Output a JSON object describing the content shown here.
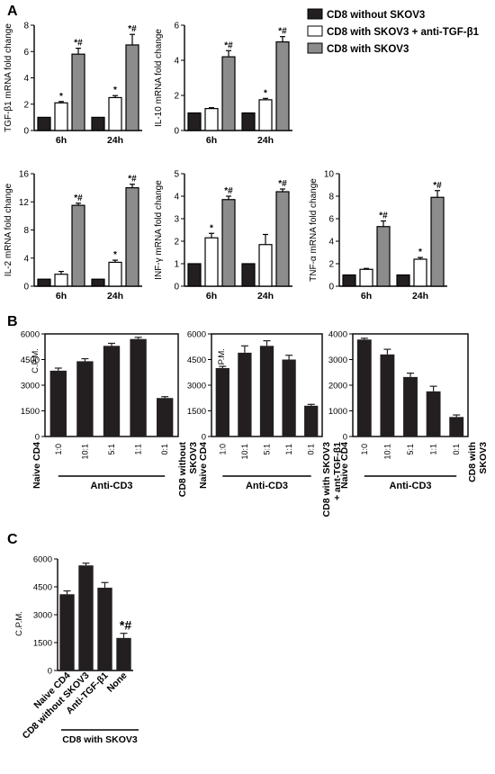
{
  "panels": {
    "A": "A",
    "B": "B",
    "C": "C"
  },
  "legend": {
    "items": [
      {
        "label": "CD8 without SKOV3",
        "color": "#231f20"
      },
      {
        "label": "CD8 with SKOV3 + anti-TGF-β1",
        "color": "#ffffff"
      },
      {
        "label": "CD8 with SKOV3",
        "color": "#8c8c8c"
      }
    ]
  },
  "chart_data": [
    {
      "id": "tgf",
      "panel": "A",
      "type": "bar",
      "ylabel": "TGF-β1 mRNA fold change",
      "categories": [
        "6h",
        "24h"
      ],
      "ylim": [
        0,
        8
      ],
      "yticks": [
        0,
        2,
        4,
        6,
        8
      ],
      "series": [
        {
          "name": "CD8 without SKOV3",
          "values": [
            1.0,
            1.0
          ],
          "errors": [
            0,
            0
          ],
          "annot": [
            "",
            ""
          ]
        },
        {
          "name": "CD8 with SKOV3 + anti-TGF-β1",
          "values": [
            2.1,
            2.5
          ],
          "errors": [
            0.1,
            0.15
          ],
          "annot": [
            "*",
            "*"
          ]
        },
        {
          "name": "CD8 with SKOV3",
          "values": [
            5.8,
            6.5
          ],
          "errors": [
            0.45,
            0.8
          ],
          "annot": [
            "*#",
            "*#"
          ]
        }
      ]
    },
    {
      "id": "il10",
      "panel": "A",
      "type": "bar",
      "ylabel": "IL-10 mRNA fold change",
      "categories": [
        "6h",
        "24h"
      ],
      "ylim": [
        0,
        6
      ],
      "yticks": [
        0,
        2,
        4,
        6
      ],
      "series": [
        {
          "name": "CD8 without SKOV3",
          "values": [
            1.0,
            1.0
          ],
          "errors": [
            0,
            0
          ],
          "annot": [
            "",
            ""
          ]
        },
        {
          "name": "CD8 with SKOV3 + anti-TGF-β1",
          "values": [
            1.25,
            1.75
          ],
          "errors": [
            0.05,
            0.08
          ],
          "annot": [
            "",
            "*"
          ]
        },
        {
          "name": "CD8 with SKOV3",
          "values": [
            4.2,
            5.05
          ],
          "errors": [
            0.35,
            0.3
          ],
          "annot": [
            "*#",
            "*#"
          ]
        }
      ]
    },
    {
      "id": "il2",
      "panel": "A",
      "type": "bar",
      "ylabel": "IL-2 mRNA fold change",
      "categories": [
        "6h",
        "24h"
      ],
      "ylim": [
        0,
        16
      ],
      "yticks": [
        0,
        4,
        8,
        12,
        16
      ],
      "series": [
        {
          "name": "CD8 without SKOV3",
          "values": [
            1.0,
            1.0
          ],
          "errors": [
            0,
            0
          ],
          "annot": [
            "",
            ""
          ]
        },
        {
          "name": "CD8 with SKOV3 + anti-TGF-β1",
          "values": [
            1.7,
            3.4
          ],
          "errors": [
            0.4,
            0.3
          ],
          "annot": [
            "",
            "*"
          ]
        },
        {
          "name": "CD8 with SKOV3",
          "values": [
            11.5,
            14.0
          ],
          "errors": [
            0.3,
            0.5
          ],
          "annot": [
            "*#",
            "*#"
          ]
        }
      ]
    },
    {
      "id": "ifn",
      "panel": "A",
      "type": "bar",
      "ylabel": "INF-γ mRNA fold change",
      "categories": [
        "6h",
        "24h"
      ],
      "ylim": [
        0,
        5
      ],
      "yticks": [
        0,
        1,
        2,
        3,
        4,
        5
      ],
      "series": [
        {
          "name": "CD8 without SKOV3",
          "values": [
            1.0,
            1.0
          ],
          "errors": [
            0,
            0
          ],
          "annot": [
            "",
            ""
          ]
        },
        {
          "name": "CD8 with SKOV3 + anti-TGF-β1",
          "values": [
            2.15,
            1.85
          ],
          "errors": [
            0.2,
            0.45
          ],
          "annot": [
            "*",
            ""
          ]
        },
        {
          "name": "CD8 with SKOV3",
          "values": [
            3.85,
            4.2
          ],
          "errors": [
            0.15,
            0.12
          ],
          "annot": [
            "*#",
            "*#"
          ]
        }
      ]
    },
    {
      "id": "tnf",
      "panel": "A",
      "type": "bar",
      "ylabel": "TNF-α mRNA fold change",
      "categories": [
        "6h",
        "24h"
      ],
      "ylim": [
        0,
        10
      ],
      "yticks": [
        0,
        2,
        4,
        6,
        8,
        10
      ],
      "series": [
        {
          "name": "CD8 without SKOV3",
          "values": [
            1.0,
            1.0
          ],
          "errors": [
            0,
            0
          ],
          "annot": [
            "",
            ""
          ]
        },
        {
          "name": "CD8 with SKOV3 + anti-TGF-β1",
          "values": [
            1.5,
            2.4
          ],
          "errors": [
            0.08,
            0.15
          ],
          "annot": [
            "",
            "*"
          ]
        },
        {
          "name": "CD8 with SKOV3",
          "values": [
            5.3,
            7.9
          ],
          "errors": [
            0.5,
            0.6
          ],
          "annot": [
            "*#",
            "*#"
          ]
        }
      ]
    },
    {
      "id": "b1",
      "panel": "B",
      "type": "bar",
      "ylabel": "C.P.M.",
      "categories": [
        "1:0",
        "10:1",
        "5:1",
        "1:1",
        "0:1"
      ],
      "values": [
        3850,
        4400,
        5300,
        5700,
        2250
      ],
      "errors": [
        150,
        150,
        150,
        100,
        80
      ],
      "ylim": [
        0,
        6000
      ],
      "yticks": [
        0,
        1500,
        3000,
        4500,
        6000
      ],
      "left_label": "Naive CD4",
      "right_label": [
        "CD8 without",
        "SKOV3"
      ],
      "group_label": "Anti-CD3"
    },
    {
      "id": "b2",
      "panel": "B",
      "type": "bar",
      "ylabel": "C.P.M.",
      "categories": [
        "1:0",
        "10:1",
        "5:1",
        "1:1",
        "0:1"
      ],
      "values": [
        4000,
        4900,
        5300,
        4500,
        1800
      ],
      "errors": [
        100,
        400,
        300,
        250,
        80
      ],
      "ylim": [
        0,
        6000
      ],
      "yticks": [
        0,
        1500,
        3000,
        4500,
        6000
      ],
      "left_label": "Naive CD4",
      "right_label": [
        "CD8 with SKOV3",
        "+ ant-TGF-β1"
      ],
      "group_label": "Anti-CD3"
    },
    {
      "id": "b3",
      "panel": "B",
      "type": "bar",
      "ylabel": "C.P.M.",
      "categories": [
        "1:0",
        "10:1",
        "5:1",
        "1:1",
        "0:1"
      ],
      "values": [
        3780,
        3200,
        2320,
        1760,
        760
      ],
      "errors": [
        50,
        200,
        150,
        200,
        80
      ],
      "ylim": [
        0,
        4000
      ],
      "yticks": [
        0,
        1000,
        2000,
        3000,
        4000
      ],
      "left_label": "Naive CD4",
      "right_label": [
        "CD8 with",
        "SKOV3"
      ],
      "group_label": "Anti-CD3"
    },
    {
      "id": "c",
      "panel": "C",
      "type": "bar",
      "ylabel": "C.P.M.",
      "categories": [
        "Naive CD4",
        "CD8 without SKOV3",
        "Anti-TGF-β1",
        "None"
      ],
      "values": [
        4100,
        5650,
        4450,
        1750
      ],
      "errors": [
        180,
        120,
        280,
        250
      ],
      "annot": [
        "",
        "",
        "",
        "*#"
      ],
      "ylim": [
        0,
        6000
      ],
      "yticks": [
        0,
        1500,
        3000,
        4500,
        6000
      ],
      "group_label": "CD8 with SKOV3"
    }
  ]
}
